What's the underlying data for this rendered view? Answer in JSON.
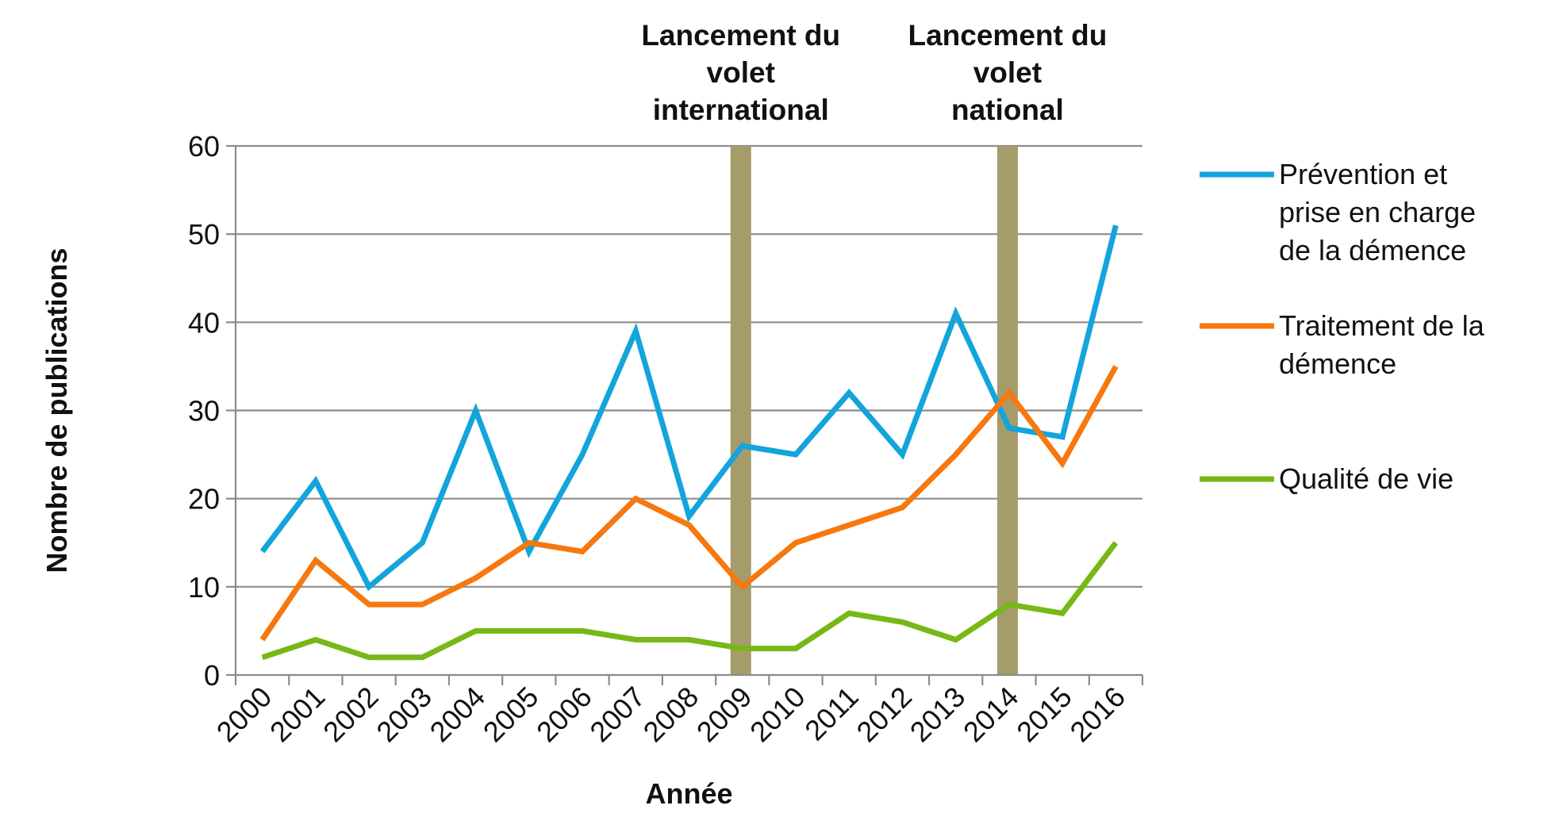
{
  "chart_data": {
    "type": "line",
    "title": "",
    "xlabel": "Année",
    "ylabel": "Nombre de publications",
    "ylim": [
      0,
      60
    ],
    "yticks": [
      0,
      10,
      20,
      30,
      40,
      50,
      60
    ],
    "grid": true,
    "legend_position": "right",
    "categories": [
      "2000",
      "2001",
      "2002",
      "2003",
      "2004",
      "2005",
      "2006",
      "2007",
      "2008",
      "2009",
      "2010",
      "2011",
      "2012",
      "2013",
      "2014",
      "2015",
      "2016"
    ],
    "series": [
      {
        "name": "Prévention et prise en charge de la démence",
        "legend_lines": [
          "Prévention et",
          "prise en charge",
          "de la démence"
        ],
        "color": "#12a5dc",
        "values": [
          14,
          22,
          10,
          15,
          30,
          14,
          25,
          39,
          18,
          26,
          25,
          32,
          25,
          41,
          28,
          27,
          51
        ]
      },
      {
        "name": "Traitement de la démence",
        "legend_lines": [
          "Traitement de la",
          "démence"
        ],
        "color": "#f6780f",
        "values": [
          4,
          13,
          8,
          8,
          11,
          15,
          14,
          20,
          17,
          10,
          15,
          17,
          19,
          25,
          32,
          24,
          35
        ]
      },
      {
        "name": "Qualité de vie",
        "legend_lines": [
          "Qualité de vie"
        ],
        "color": "#77b816",
        "values": [
          2,
          4,
          2,
          2,
          5,
          5,
          5,
          4,
          4,
          3,
          3,
          7,
          6,
          4,
          8,
          7,
          15
        ]
      }
    ],
    "annotations": [
      {
        "x": 9,
        "lines": [
          "Lancement du",
          "volet",
          "international"
        ],
        "color": "#a69c6a"
      },
      {
        "x": 14,
        "lines": [
          "Lancement du",
          "volet",
          "national"
        ],
        "color": "#a69c6a"
      }
    ]
  }
}
